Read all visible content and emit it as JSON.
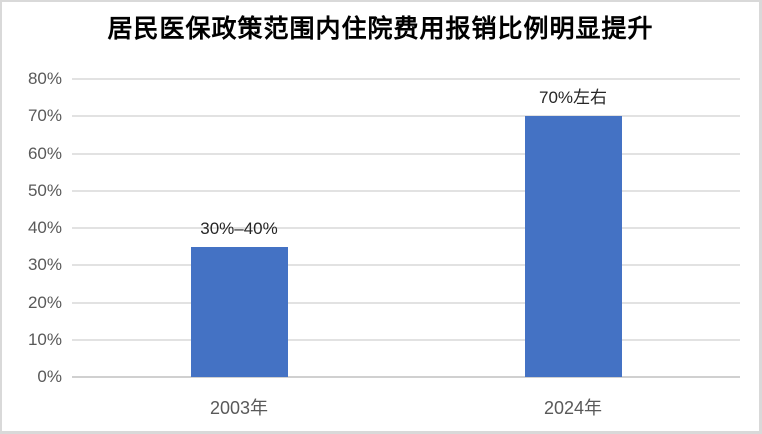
{
  "chart_data": {
    "type": "bar",
    "title": "居民医保政策范围内住院费用报销比例明显提升",
    "categories": [
      "2003年",
      "2024年"
    ],
    "values": [
      35,
      70
    ],
    "value_labels": [
      "30%–40%",
      "70%左右"
    ],
    "ylabel": "",
    "xlabel": "",
    "ylim": [
      0,
      80
    ],
    "ytick_interval": 10,
    "ytick_labels": [
      "0%",
      "10%",
      "20%",
      "30%",
      "40%",
      "50%",
      "60%",
      "70%",
      "80%"
    ],
    "grid": true,
    "legend": "none",
    "colors": {
      "bar": "#4472c4",
      "gridline": "#e2e2e2",
      "axis_line": "#d0d0d0",
      "axis_label": "#595959",
      "data_label": "#262626",
      "title": "#000000",
      "frame_border": "#d9d9d9",
      "background": "#ffffff"
    }
  }
}
